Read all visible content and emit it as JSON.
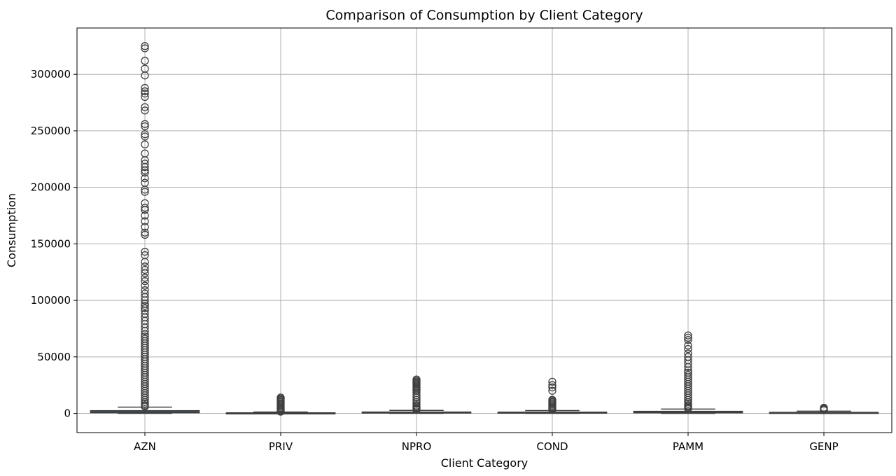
{
  "chart_data": {
    "type": "box",
    "title": "Comparison of Consumption by Client Category",
    "xlabel": "Client Category",
    "ylabel": "Consumption",
    "ylim": [
      -17000,
      341000
    ],
    "yticks": [
      0,
      50000,
      100000,
      150000,
      200000,
      250000,
      300000
    ],
    "ytick_labels": [
      "0",
      "50000",
      "100000",
      "150000",
      "200000",
      "250000",
      "300000"
    ],
    "grid": true,
    "box_color": "#1f77b4",
    "line_color": "#3f3f3f",
    "categories": [
      "AZN",
      "PRIV",
      "NPRO",
      "COND",
      "PAMM",
      "GENP"
    ],
    "boxes": [
      {
        "category": "AZN",
        "whisker_low": 0,
        "q1": 600,
        "median": 1300,
        "q3": 2400,
        "whisker_high": 5500,
        "outliers": [
          325000,
          323000,
          312000,
          305000,
          299000,
          288000,
          285000,
          283000,
          280000,
          271000,
          268000,
          256000,
          254000,
          247000,
          245000,
          238000,
          230000,
          224000,
          221000,
          218000,
          215000,
          213000,
          208000,
          204000,
          198000,
          196000,
          186000,
          182000,
          180000,
          175000,
          170000,
          165000,
          160000,
          158000,
          143000,
          140000,
          134000,
          130000,
          127000,
          124000,
          120000,
          117000,
          113000,
          109000,
          106000,
          103000,
          100000,
          97000,
          95000,
          93000,
          91000,
          88000,
          85000,
          82000,
          79000,
          76000,
          73000,
          70000,
          68000,
          66000,
          64000,
          62000,
          60000,
          58000,
          56000,
          54000,
          52000,
          50000,
          48000,
          46000,
          44000,
          42000,
          40000,
          38000,
          36000,
          34000,
          32000,
          30000,
          28000,
          26000,
          24000,
          22000,
          20000,
          18000,
          16000,
          14000,
          12000,
          10000,
          8500,
          7000,
          6000
        ]
      },
      {
        "category": "PRIV",
        "whisker_low": 0,
        "q1": 100,
        "median": 250,
        "q3": 500,
        "whisker_high": 1200,
        "outliers": [
          14000,
          13000,
          12000,
          11000,
          10000,
          9000,
          8000,
          7000,
          6000,
          5000,
          4000,
          3000,
          2000,
          1500
        ]
      },
      {
        "category": "NPRO",
        "whisker_low": 0,
        "q1": 300,
        "median": 700,
        "q3": 1200,
        "whisker_high": 2700,
        "outliers": [
          30000,
          29000,
          28000,
          27000,
          26000,
          25000,
          24000,
          23000,
          22000,
          21000,
          20000,
          18000,
          16000,
          14000,
          12000,
          10000,
          8500,
          7000,
          6000,
          5000,
          4000,
          3200
        ]
      },
      {
        "category": "COND",
        "whisker_low": 0,
        "q1": 300,
        "median": 600,
        "q3": 1100,
        "whisker_high": 2500,
        "outliers": [
          28000,
          25000,
          23000,
          20000,
          12000,
          11000,
          10000,
          9000,
          8000,
          7000,
          6000,
          5000,
          4000,
          3200
        ]
      },
      {
        "category": "PAMM",
        "whisker_low": 0,
        "q1": 500,
        "median": 1100,
        "q3": 1800,
        "whisker_high": 3800,
        "outliers": [
          69000,
          67000,
          65000,
          60000,
          57000,
          53000,
          50000,
          47000,
          44000,
          41000,
          38000,
          36000,
          34000,
          32000,
          30000,
          28000,
          26000,
          24000,
          22000,
          20000,
          18000,
          16000,
          14000,
          12000,
          10000,
          8500,
          7000,
          6000,
          5000,
          4300
        ]
      },
      {
        "category": "GENP",
        "whisker_low": 0,
        "q1": 200,
        "median": 500,
        "q3": 900,
        "whisker_high": 2000,
        "outliers": [
          5000,
          4200,
          3500,
          2800
        ]
      }
    ]
  }
}
